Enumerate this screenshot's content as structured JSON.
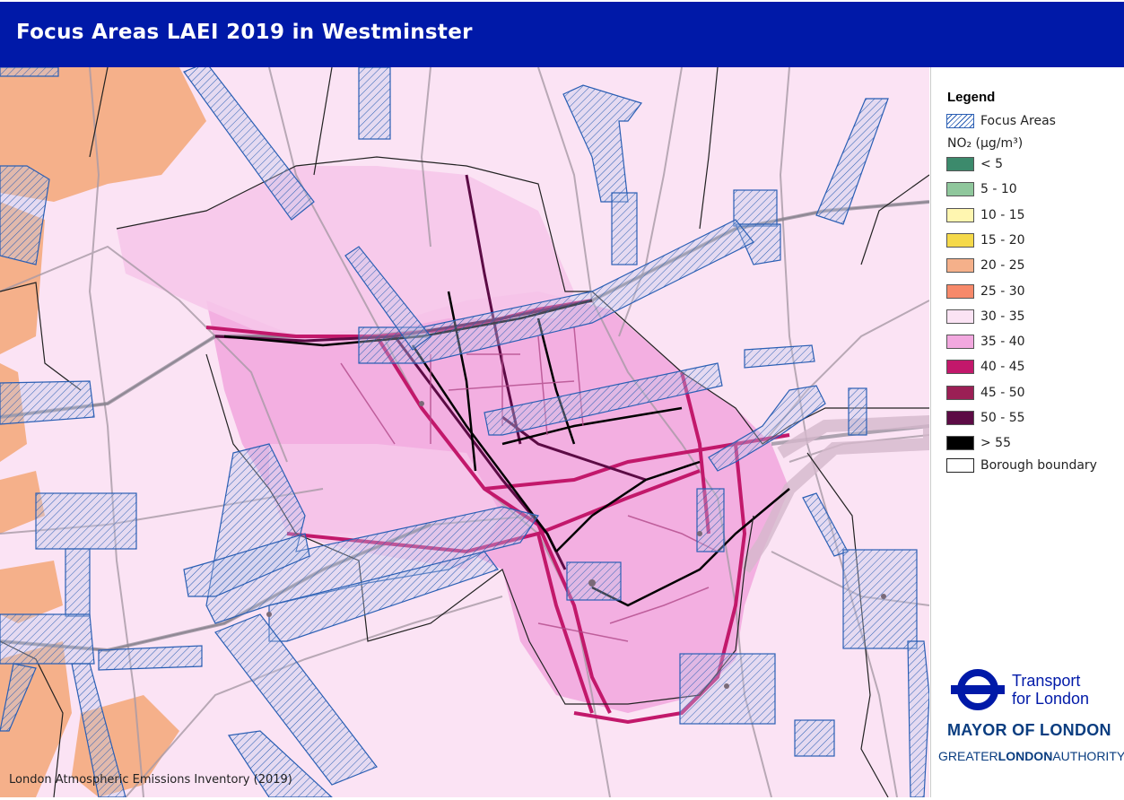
{
  "header": {
    "title": "Focus Areas LAEI 2019 in Westminster"
  },
  "map": {
    "source_text": "London Atmospheric Emissions Inventory (2019)"
  },
  "legend": {
    "title": "Legend",
    "focus_areas_label": "Focus Areas",
    "no2_label": "NO₂ (µg/m³)",
    "bands": [
      {
        "label": "< 5",
        "color": "#3c8a6c"
      },
      {
        "label": "5 - 10",
        "color": "#8fc79c"
      },
      {
        "label": "10 - 15",
        "color": "#fff6b0"
      },
      {
        "label": "15 - 20",
        "color": "#f5d94a"
      },
      {
        "label": "20 - 25",
        "color": "#f5b08a"
      },
      {
        "label": "25 - 30",
        "color": "#f7896a"
      },
      {
        "label": "30 - 35",
        "color": "#fbe3f4"
      },
      {
        "label": "35 - 40",
        "color": "#f2a8df"
      },
      {
        "label": "40 - 45",
        "color": "#c2186b"
      },
      {
        "label": "45 - 50",
        "color": "#9b1f55"
      },
      {
        "label": "50 - 55",
        "color": "#5c0b45"
      },
      {
        "label": "> 55",
        "color": "#000000"
      }
    ],
    "borough_label": "Borough boundary"
  },
  "branding": {
    "tfl_line1": "Transport",
    "tfl_line2": "for London",
    "mayor": "MAYOR OF LONDON",
    "gla_part1": "GREATER",
    "gla_part2": "LONDON",
    "gla_part3": "AUTHORITY",
    "accent": "#0019a8"
  }
}
